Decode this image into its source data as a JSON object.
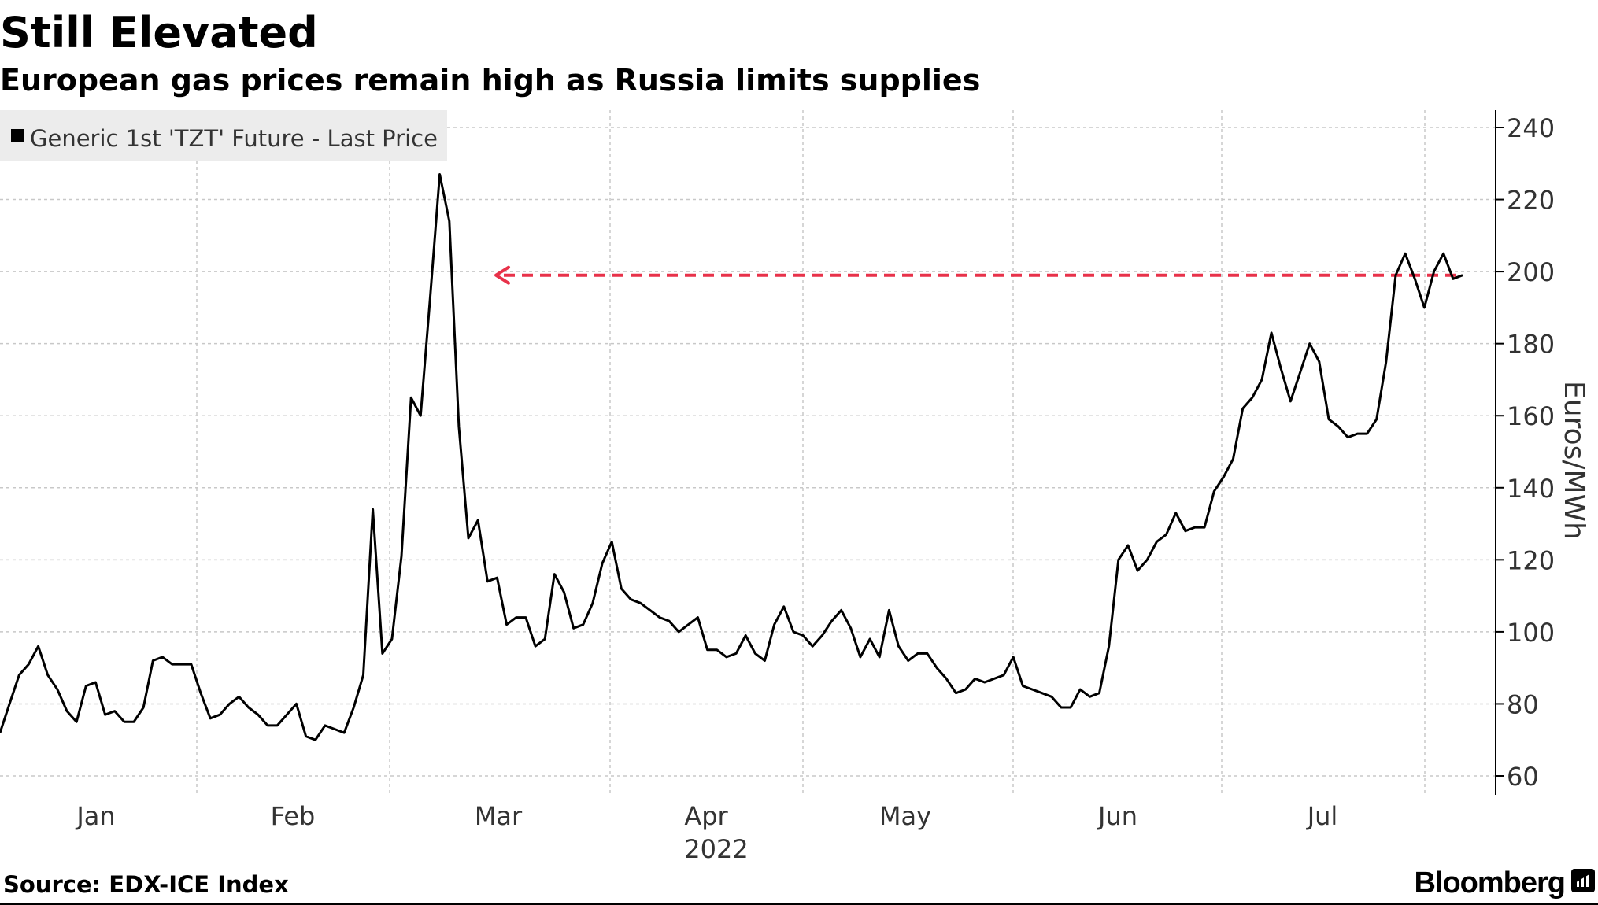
{
  "title": "Still Elevated",
  "subtitle": "European gas prices remain high as Russia limits supplies",
  "source": "Source: EDX-ICE Index",
  "brand": "Bloomberg",
  "chart_data": {
    "type": "line",
    "title": "Still Elevated",
    "subtitle": "European gas prices remain high as Russia limits supplies",
    "ylabel": "Euros/MWh",
    "xlabel": "2022",
    "ylim": [
      60,
      240
    ],
    "yticks": [
      60,
      80,
      100,
      120,
      140,
      160,
      180,
      200,
      220,
      240
    ],
    "xticks": [
      "Jan",
      "Feb",
      "Mar",
      "Apr",
      "May",
      "Jun",
      "Jul"
    ],
    "grid": true,
    "legend_position": "top-left",
    "series": [
      {
        "name": "Generic 1st 'TZT' Future - Last Price",
        "color": "#000000",
        "values": [
          72,
          80,
          88,
          91,
          96,
          88,
          84,
          78,
          75,
          85,
          86,
          77,
          78,
          75,
          75,
          79,
          92,
          93,
          91,
          91,
          91,
          83,
          76,
          77,
          80,
          82,
          79,
          77,
          74,
          74,
          77,
          80,
          71,
          70,
          74,
          73,
          72,
          79,
          88,
          134,
          94,
          98,
          121,
          165,
          160,
          193,
          227,
          214,
          157,
          126,
          131,
          114,
          115,
          102,
          104,
          104,
          96,
          98,
          116,
          111,
          101,
          102,
          108,
          119,
          125,
          112,
          109,
          108,
          106,
          104,
          103,
          100,
          102,
          104,
          95,
          95,
          93,
          94,
          99,
          94,
          92,
          102,
          107,
          100,
          99,
          96,
          99,
          103,
          106,
          101,
          93,
          98,
          93,
          106,
          96,
          92,
          94,
          94,
          90,
          87,
          83,
          84,
          87,
          86,
          87,
          88,
          93,
          85,
          84,
          83,
          82,
          79,
          79,
          84,
          82,
          83,
          96,
          120,
          124,
          117,
          120,
          125,
          127,
          133,
          128,
          129,
          129,
          139,
          143,
          148,
          162,
          165,
          170,
          183,
          173,
          164,
          172,
          180,
          175,
          159,
          157,
          154,
          155,
          155,
          159,
          175,
          199,
          205,
          198,
          190,
          200,
          205,
          198,
          199
        ]
      }
    ],
    "annotations": [
      {
        "type": "dashed-arrow",
        "color": "#e8324a",
        "value": 199,
        "direction": "left"
      }
    ]
  }
}
